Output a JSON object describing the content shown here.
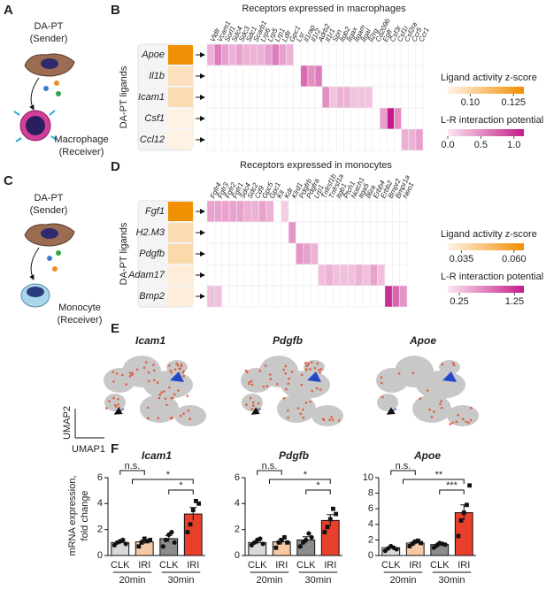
{
  "a": {
    "letter": "A",
    "sender": [
      "DA-PT",
      "(Sender)"
    ],
    "receiver": [
      "Macrophage",
      "(Receiver)"
    ]
  },
  "c": {
    "letter": "C",
    "sender": [
      "DA-PT",
      "(Sender)"
    ],
    "receiver": [
      "Monocyte",
      "(Receiver)"
    ]
  },
  "b": {
    "letter": "B",
    "title": "Receptors expressed in macrophages",
    "ylabel": "DA-PT ligands",
    "ligands": [
      "Apoe",
      "Il1b",
      "Icam1",
      "Csf1",
      "Ccl12"
    ],
    "activity": [
      0.13,
      0.095,
      0.097,
      0.088,
      0.088
    ],
    "activity_label": "Ligand activity z-score",
    "activity_lim": [
      0.087,
      0.131
    ],
    "activity_ticks": [
      {
        "value": 0.1,
        "label": "0.10"
      },
      0.125
    ],
    "receptors": [
      "Vldlr",
      "Vcam1",
      "Sorl1",
      "Sdc4",
      "Sdc3",
      "Sdc1",
      "Scarb1",
      "Lrp6",
      "Lrp5",
      "Lrp1",
      "Ldlr",
      "Gpc1",
      "Lsr",
      "Il1rap",
      "Il1r2",
      "Adrb2",
      "Il1r1",
      "Spn",
      "Itgb2",
      "Itgax",
      "Itgam",
      "Itgal",
      "Il2rg",
      "Cd209b",
      "Egfr",
      "Csf3r",
      "Csf1r",
      "Csf2ra",
      "Ccr5",
      "Ccr1"
    ],
    "potential": [
      [
        0.3,
        0.6,
        0.4,
        0.3,
        0.4,
        0.3,
        0.3,
        0.3,
        0.4,
        0.6,
        0.4,
        0.3,
        0,
        0,
        0,
        0,
        0,
        0,
        0,
        0,
        0,
        0,
        0,
        0,
        0,
        0,
        0,
        0,
        0,
        0
      ],
      [
        0,
        0,
        0,
        0,
        0,
        0,
        0,
        0,
        0,
        0,
        0,
        0,
        0,
        0.7,
        0.5,
        0.6,
        0,
        0,
        0,
        0,
        0,
        0,
        0,
        0,
        0,
        0,
        0,
        0,
        0,
        0
      ],
      [
        0,
        0,
        0,
        0,
        0,
        0,
        0,
        0,
        0,
        0,
        0,
        0,
        0,
        0,
        0,
        0,
        0.5,
        0.2,
        0.3,
        0.3,
        0.2,
        0.2,
        0.2,
        0,
        0,
        0,
        0,
        0,
        0,
        0
      ],
      [
        0,
        0,
        0,
        0,
        0,
        0,
        0,
        0,
        0,
        0,
        0,
        0,
        0,
        0,
        0,
        0,
        0,
        0,
        0,
        0,
        0,
        0,
        0,
        0,
        0.4,
        1.2,
        0.5,
        0,
        0,
        0
      ],
      [
        0,
        0,
        0,
        0,
        0,
        0,
        0,
        0,
        0,
        0,
        0,
        0,
        0,
        0,
        0,
        0,
        0,
        0,
        0,
        0,
        0,
        0,
        0,
        0,
        0,
        0,
        0,
        0.3,
        0.3,
        0.4
      ]
    ],
    "potential_label": "L-R interaction potential",
    "potential_lim": [
      0,
      1.15
    ],
    "potential_ticks": [
      {
        "value": 0,
        "label": "0.0"
      },
      0.5,
      {
        "value": 1,
        "label": "1.0"
      }
    ]
  },
  "d": {
    "letter": "D",
    "title": "Receptors expressed in monocytes",
    "ylabel": "DA-PT ligands",
    "ligands": [
      "Fgf1",
      "H2.M3",
      "Pdgfb",
      "Adam17",
      "Bmp2"
    ],
    "activity": [
      0.064,
      0.037,
      0.038,
      0.031,
      0.031
    ],
    "activity_label": "Ligand activity z-score",
    "activity_lim": [
      0.0285,
      0.0647
    ],
    "activity_ticks": [
      0.035,
      {
        "value": 0.06,
        "label": "0.060"
      }
    ],
    "receptors": [
      "Fgfr4",
      "Fgfr3",
      "Fgfr2",
      "Fgfr1",
      "Sdc4",
      "Sdc2",
      "Cd9",
      "Gpc5",
      "Gpc1",
      "Kit",
      "Kdr",
      "Klrd1",
      "Pdgfrb",
      "Pdgfra",
      "Lrp1",
      "Tnfrsf1b",
      "Tnfrsf1a",
      "Itgb1",
      "Ptch1",
      "Notch1",
      "Itga5",
      "Il6ra",
      "Erbb4",
      "Erbb2",
      "Bmpr2",
      "Bmpr1a",
      "Neo1"
    ],
    "potential": [
      [
        0.5,
        0.5,
        0.5,
        0.5,
        0.5,
        0.4,
        0.4,
        0.5,
        0.4,
        0,
        0.2,
        0,
        0,
        0,
        0,
        0,
        0,
        0,
        0,
        0,
        0,
        0,
        0,
        0,
        0,
        0,
        0
      ],
      [
        0,
        0,
        0,
        0,
        0,
        0,
        0,
        0,
        0,
        0,
        0,
        0.6,
        0,
        0,
        0,
        0,
        0,
        0,
        0,
        0,
        0,
        0,
        0,
        0,
        0,
        0,
        0
      ],
      [
        0,
        0,
        0,
        0,
        0,
        0,
        0,
        0,
        0,
        0,
        0,
        0,
        0.6,
        0.5,
        0.4,
        0,
        0,
        0,
        0,
        0,
        0,
        0,
        0,
        0,
        0,
        0,
        0
      ],
      [
        0,
        0,
        0,
        0,
        0,
        0,
        0,
        0,
        0,
        0,
        0,
        0,
        0,
        0,
        0,
        0.3,
        0.4,
        0.3,
        0.3,
        0.3,
        0.4,
        0.3,
        0.5,
        0.3,
        0,
        0,
        0
      ],
      [
        0.3,
        0.3,
        0,
        0,
        0,
        0,
        0,
        0,
        0,
        0,
        0,
        0,
        0,
        0,
        0,
        0,
        0,
        0,
        0,
        0,
        0,
        0,
        0,
        0,
        1.3,
        0.9,
        0.6
      ]
    ],
    "potential_label": "L-R interaction potential",
    "potential_lim": [
      0.04,
      1.42
    ],
    "potential_ticks": [
      0.25,
      1.25
    ]
  },
  "e": {
    "letter": "E",
    "titles": [
      "Icam1",
      "Pdgfb",
      "Apoe"
    ],
    "xlabel": "UMAP1",
    "ylabel": "UMAP2"
  },
  "f": {
    "letter": "F",
    "ylabel": [
      "mRNA expression,",
      "fold change"
    ],
    "categories": [
      "CLK",
      "IRI",
      "CLK",
      "IRI"
    ],
    "groups": [
      "20min",
      "30min"
    ],
    "colors": [
      "#d9d9d9",
      "#f6c9a4",
      "#8c8c8c",
      "#e8402a"
    ],
    "charts": [
      {
        "title": "Icam1",
        "ylim": [
          0,
          6
        ],
        "yticks": [
          0,
          2,
          4,
          6
        ],
        "values": [
          1.0,
          1.05,
          1.3,
          3.2
        ],
        "errors": [
          0.12,
          0.15,
          0.25,
          0.5
        ],
        "points": [
          [
            0.8,
            1.0,
            1.1,
            1.2,
            0.9
          ],
          [
            0.7,
            1.0,
            1.3,
            1.1,
            1.2
          ],
          [
            0.7,
            1.2,
            1.6,
            1.8,
            1.0
          ],
          [
            1.8,
            2.4,
            3.5,
            4.2,
            4.0
          ]
        ],
        "sig": [
          "n.s.",
          "*",
          "*"
        ]
      },
      {
        "title": "Pdgfb",
        "ylim": [
          0,
          6
        ],
        "yticks": [
          0,
          2,
          4,
          6
        ],
        "values": [
          1.0,
          1.05,
          1.2,
          2.7
        ],
        "errors": [
          0.12,
          0.2,
          0.25,
          0.45
        ],
        "points": [
          [
            0.8,
            1.0,
            1.2,
            1.3,
            0.9
          ],
          [
            0.6,
            1.0,
            1.2,
            1.4,
            1.0
          ],
          [
            0.7,
            1.0,
            1.2,
            1.7,
            1.4
          ],
          [
            1.8,
            2.2,
            2.8,
            3.6,
            3.2
          ]
        ],
        "sig": [
          "n.s.",
          "*",
          "*"
        ]
      },
      {
        "title": "Apoe",
        "ylim": [
          0,
          10
        ],
        "yticks": [
          0,
          2,
          4,
          6,
          8,
          10
        ],
        "values": [
          1.0,
          1.6,
          1.4,
          5.5
        ],
        "errors": [
          0.15,
          0.2,
          0.2,
          1.0
        ],
        "points": [
          [
            0.6,
            0.9,
            1.2,
            1.0,
            0.8
          ],
          [
            1.2,
            1.5,
            1.8,
            1.9,
            1.6
          ],
          [
            1.0,
            1.3,
            1.6,
            1.5,
            1.4
          ],
          [
            2.5,
            4.5,
            5.5,
            6.5,
            9.0
          ]
        ],
        "sig": [
          "n.s.",
          "**",
          "***"
        ]
      }
    ]
  }
}
